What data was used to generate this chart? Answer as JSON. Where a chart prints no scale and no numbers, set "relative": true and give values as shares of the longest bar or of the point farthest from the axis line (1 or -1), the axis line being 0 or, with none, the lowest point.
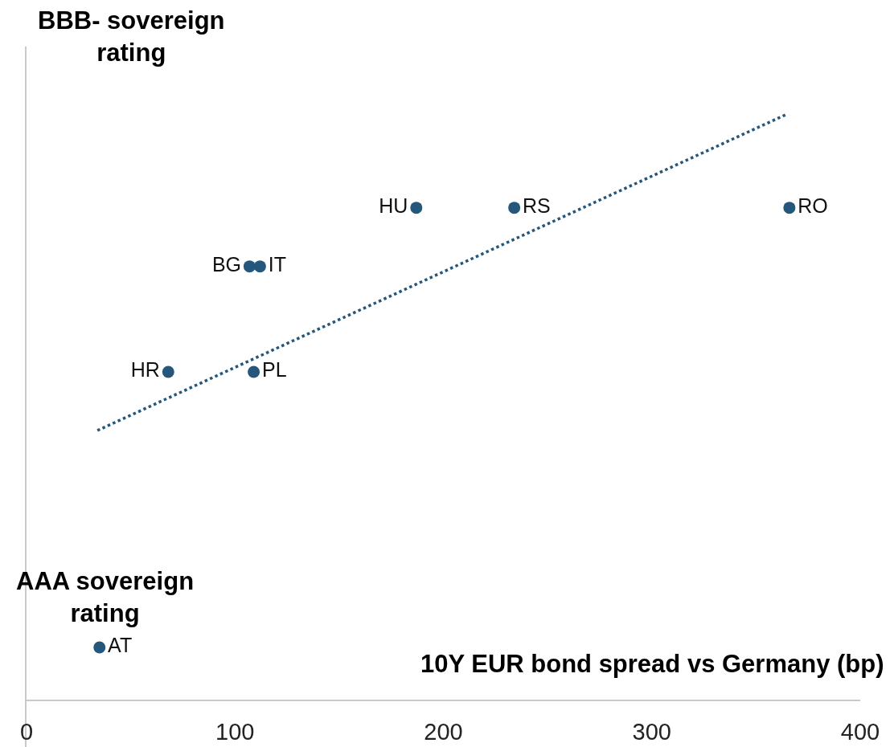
{
  "chart_data": {
    "type": "scatter",
    "xlabel": "10Y EUR bond spread vs Germany (bp)",
    "annotations": [
      "BBB- sovereign rating",
      "AAA sovereign rating"
    ],
    "xlim": [
      0,
      400
    ],
    "xticks": [
      0,
      100,
      200,
      300,
      400
    ],
    "relative": true,
    "marker": "circle",
    "line_style": "dotted",
    "legend": false,
    "series": [
      {
        "name": "AT",
        "color": "#25567b",
        "x": [
          35
        ],
        "values": [
          0.09
        ]
      },
      {
        "name": "HR",
        "color": "#25567b",
        "x": [
          68
        ],
        "values": [
          0.56
        ]
      },
      {
        "name": "PL",
        "color": "#25567b",
        "x": [
          109
        ],
        "values": [
          0.56
        ]
      },
      {
        "name": "BG",
        "color": "#25567b",
        "x": [
          107
        ],
        "values": [
          0.74
        ]
      },
      {
        "name": "IT",
        "color": "#25567b",
        "x": [
          112
        ],
        "values": [
          0.74
        ]
      },
      {
        "name": "HU",
        "color": "#25567b",
        "x": [
          187
        ],
        "values": [
          0.84
        ]
      },
      {
        "name": "RS",
        "color": "#25567b",
        "x": [
          234
        ],
        "values": [
          0.84
        ]
      },
      {
        "name": "RO",
        "color": "#25567b",
        "x": [
          366
        ],
        "values": [
          0.84
        ]
      },
      {
        "type": "line",
        "color": "#25567b",
        "marker": "none",
        "x": [
          34,
          365
        ],
        "values": [
          0.46,
          1
        ]
      }
    ]
  }
}
